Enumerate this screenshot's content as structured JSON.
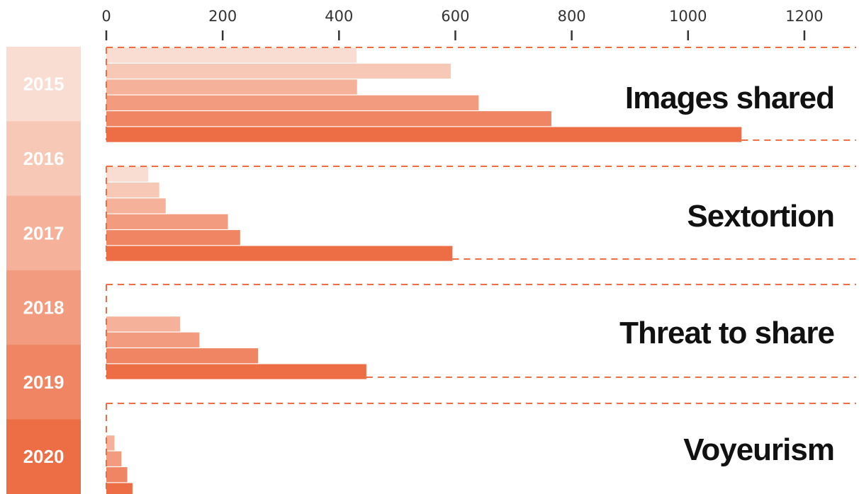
{
  "chart_data": {
    "type": "bar",
    "orientation": "horizontal",
    "title": "",
    "xlabel": "",
    "ylabel": "",
    "xlim": [
      0,
      1200
    ],
    "x_ticks": [
      0,
      200,
      400,
      600,
      800,
      1000,
      1200
    ],
    "years": [
      "2015",
      "2016",
      "2017",
      "2018",
      "2019",
      "2020"
    ],
    "year_colors": [
      "#f9ddd3",
      "#f8c8b7",
      "#f5b19a",
      "#f29b7e",
      "#ef8562",
      "#ed6d45"
    ],
    "groups": [
      {
        "label": "Images shared",
        "values": [
          430,
          592,
          431,
          640,
          765,
          1092
        ]
      },
      {
        "label": "Sextortion",
        "values": [
          72,
          91,
          102,
          209,
          230,
          595
        ]
      },
      {
        "label": "Threat to share",
        "values": [
          null,
          null,
          127,
          160,
          261,
          447
        ]
      },
      {
        "label": "Voyeurism",
        "values": [
          null,
          null,
          14,
          26,
          36,
          45
        ]
      }
    ],
    "grid": false,
    "legend": "left"
  }
}
